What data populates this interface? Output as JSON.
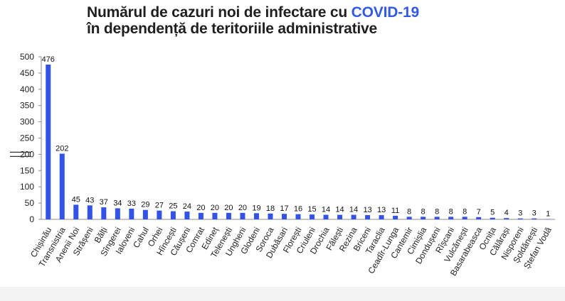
{
  "title": {
    "line1_prefix": "Numărul de cazuri noi de infectare cu ",
    "line1_highlight": "COVID-19",
    "line2": "în dependență de teritoriile administrative",
    "highlight_color": "#3259e8"
  },
  "chart_data": {
    "type": "bar",
    "bar_color": "#3352e8",
    "ylim": [
      0,
      500
    ],
    "yticks": [
      0,
      50,
      100,
      150,
      200,
      250,
      300,
      350,
      400,
      450,
      500
    ],
    "axis_break": true,
    "grid": false,
    "categories": [
      "Chișinău",
      "Transnistria",
      "Anenii Noi",
      "Strășeni",
      "Bălți",
      "Sîngerei",
      "Ialoveni",
      "Cahul",
      "Orhei",
      "Hîncești",
      "Căușeni",
      "Comrat",
      "Edineț",
      "Telenești",
      "Ungheni",
      "Glodeni",
      "Soroca",
      "Dubăsari",
      "Florești",
      "Criuleni",
      "Drochia",
      "Fălești",
      "Rezina",
      "Briceni",
      "Taraclia",
      "Ceadîr-Lunga",
      "Cantemir",
      "Cimișlia",
      "Dondușeni",
      "Rîșcani",
      "Vulcănești",
      "Basarabeasca",
      "Ocnița",
      "Călărași",
      "Nisporeni",
      "Șoldănești",
      "Ștefan Vodă"
    ],
    "values": [
      476,
      202,
      45,
      43,
      37,
      34,
      33,
      29,
      27,
      25,
      24,
      20,
      20,
      20,
      20,
      19,
      18,
      17,
      16,
      15,
      14,
      14,
      14,
      13,
      13,
      11,
      8,
      8,
      8,
      8,
      8,
      7,
      5,
      4,
      3,
      3,
      1
    ]
  }
}
